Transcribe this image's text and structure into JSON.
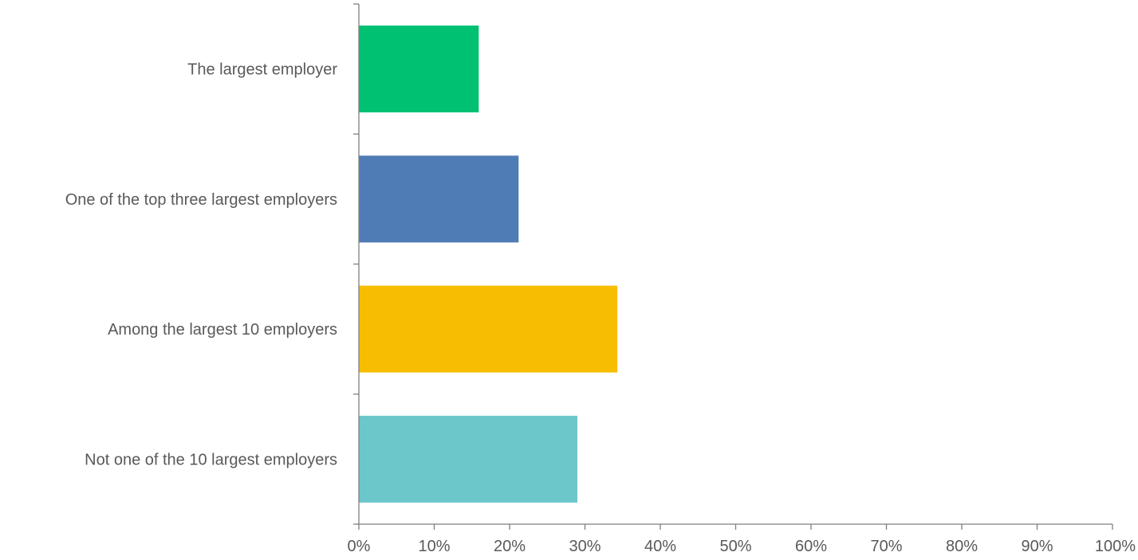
{
  "chart_data": {
    "type": "bar",
    "orientation": "horizontal",
    "categories": [
      "The largest employer",
      "One of the top three largest employers",
      "Among the largest 10 employers",
      "Not one of the 10 largest employers"
    ],
    "values": [
      15.9,
      21.2,
      34.3,
      29.0
    ],
    "colors": [
      "#00c072",
      "#4f7cb5",
      "#f7bd00",
      "#6cc7cb"
    ],
    "xlim": [
      0,
      100
    ],
    "xticks": [
      0,
      10,
      20,
      30,
      40,
      50,
      60,
      70,
      80,
      90,
      100
    ],
    "xtick_labels": [
      "0%",
      "10%",
      "20%",
      "30%",
      "40%",
      "50%",
      "60%",
      "70%",
      "80%",
      "90%",
      "100%"
    ],
    "grid": false,
    "legend": "none",
    "axis_color": "#7f7f7f",
    "text_color": "#595959"
  }
}
